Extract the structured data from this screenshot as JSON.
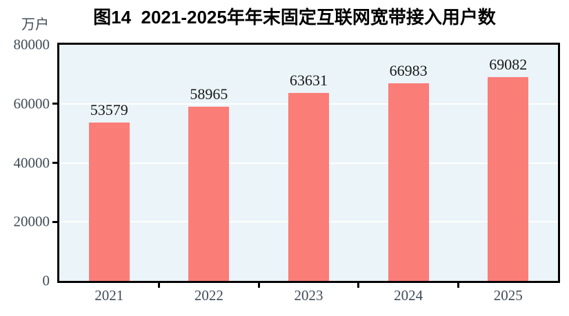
{
  "chart_data": {
    "type": "bar",
    "title": "图14  2021-2025年年末固定互联网宽带接入用户数",
    "ylabel": "万户",
    "xlabel": "",
    "categories": [
      "2021",
      "2022",
      "2023",
      "2024",
      "2025"
    ],
    "values": [
      53579,
      58965,
      63631,
      66983,
      69082
    ],
    "data_labels": [
      "53579",
      "58965",
      "63631",
      "66983",
      "69082"
    ],
    "ylim": [
      0,
      80000
    ],
    "yticks": [
      {
        "label": "80000",
        "value": 80000
      },
      {
        "label": "60000",
        "value": 60000
      },
      {
        "label": "40000",
        "value": 40000
      },
      {
        "label": "20000",
        "value": 20000
      },
      {
        "label": "0",
        "value": 0
      }
    ],
    "grid": "horizontal-white-lines",
    "legend": "none",
    "colors": {
      "bar": "#fb7d77",
      "plot_background": "#ebf4f8",
      "gridline": "#ffffff",
      "axis": "#000000",
      "tick_label_text": "#3f4b58",
      "data_label_text": "#191919",
      "title_text": "#000000"
    }
  }
}
